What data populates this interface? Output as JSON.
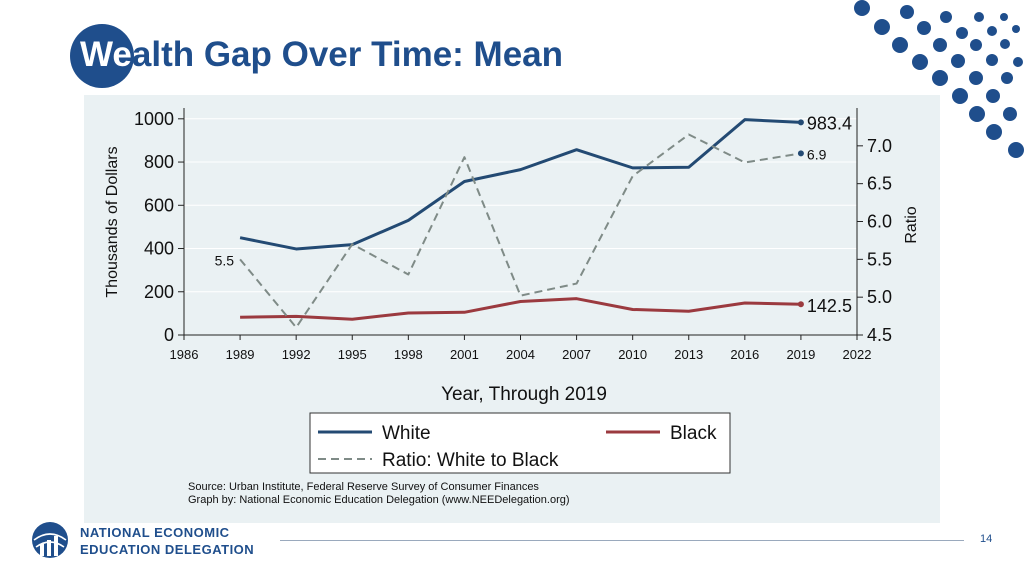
{
  "slide": {
    "title_first": "We",
    "title_rest": "alth Gap Over Time: Mean",
    "page_number": "14"
  },
  "logo": {
    "line1": "NATIONAL ECONOMIC",
    "line2": "EDUCATION DELEGATION"
  },
  "colors": {
    "brand": "#1f4e8c",
    "white_series": "#234a73",
    "black_series": "#9b3a3f",
    "ratio_series": "#7f8b87",
    "panel_bg": "#eaf1f3"
  },
  "chart_data": {
    "type": "line",
    "x": [
      1989,
      1992,
      1995,
      1998,
      2001,
      2004,
      2007,
      2010,
      2013,
      2016,
      2019
    ],
    "xlabel": "Year, Through 2019",
    "ylabel": "Thousands of Dollars",
    "y2label": "Ratio",
    "x_ticks": [
      1986,
      1989,
      1992,
      1995,
      1998,
      2001,
      2004,
      2007,
      2010,
      2013,
      2016,
      2019,
      2022
    ],
    "y_ticks": [
      0,
      200,
      400,
      600,
      800,
      1000
    ],
    "y2_ticks": [
      "4.5",
      "5.0",
      "5.5",
      "6.0",
      "6.5",
      "7.0"
    ],
    "xlim": [
      1986,
      2022
    ],
    "ylim": [
      0,
      1050
    ],
    "y2lim": [
      4.5,
      7.5
    ],
    "grid": true,
    "legend_placement": "bottom-center",
    "series": [
      {
        "name": "White",
        "axis": "left",
        "style": "solid",
        "values": [
          450,
          398,
          418,
          530,
          710,
          765,
          857,
          773,
          776,
          996,
          983.4
        ]
      },
      {
        "name": "Black",
        "axis": "left",
        "style": "solid",
        "values": [
          82,
          86,
          73,
          102,
          105,
          155,
          168,
          118,
          110,
          148,
          142.5
        ]
      },
      {
        "name": "Ratio: White to Black",
        "axis": "right",
        "style": "dashed",
        "values": [
          5.5,
          4.6,
          5.7,
          5.3,
          6.85,
          5.02,
          5.18,
          6.6,
          7.15,
          6.78,
          6.9
        ]
      }
    ],
    "annotations": {
      "white_end": "983.4",
      "black_end": "142.5",
      "ratio_end": "6.9",
      "ratio_start": "5.5"
    },
    "source_line1": "Source: Urban Institute, Federal Reserve Survey of Consumer Finances",
    "source_line2": "Graph by: National Economic Education Delegation (www.NEEDelegation.org)"
  }
}
